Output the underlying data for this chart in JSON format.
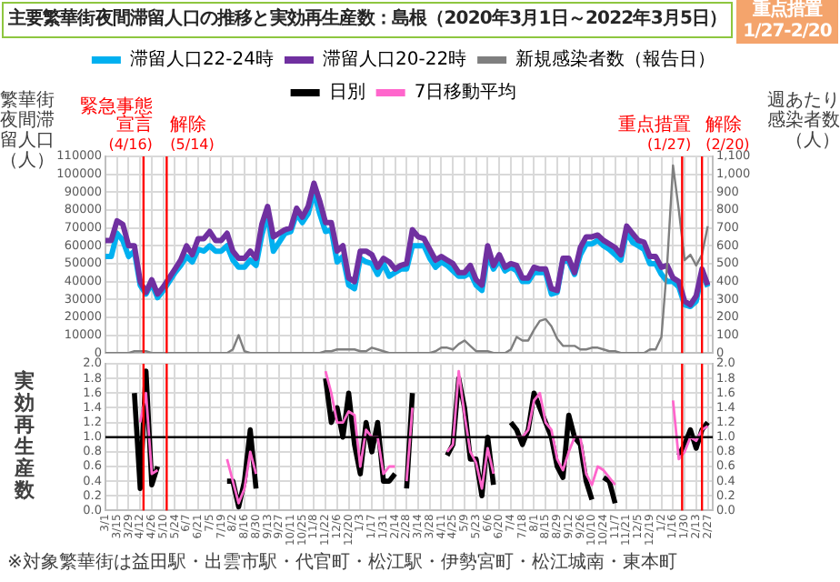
{
  "chart_data": [
    {
      "type": "line",
      "title": "主要繁華街夜間滞留人口の推移と実効再生産数：島根（2020年3月1日～2022年3月5日）",
      "annotations": [
        "重点措置 1/27-2/20"
      ],
      "ylabel": "繁華街夜間滞留人口（人）",
      "y2label": "週あたり感染者数（人）",
      "x": [
        "2020-03-01",
        "2020-03-08",
        "2020-03-15",
        "2020-03-22",
        "2020-03-29",
        "2020-04-05",
        "2020-04-12",
        "2020-04-19",
        "2020-04-26",
        "2020-05-03",
        "2020-05-10",
        "2020-05-17",
        "2020-05-24",
        "2020-05-31",
        "2020-06-07",
        "2020-06-14",
        "2020-06-21",
        "2020-06-28",
        "2020-07-05",
        "2020-07-12",
        "2020-07-19",
        "2020-07-26",
        "2020-08-02",
        "2020-08-09",
        "2020-08-16",
        "2020-08-23",
        "2020-08-30",
        "2020-09-06",
        "2020-09-13",
        "2020-09-20",
        "2020-09-27",
        "2020-10-04",
        "2020-10-11",
        "2020-10-18",
        "2020-10-25",
        "2020-11-01",
        "2020-11-08",
        "2020-11-15",
        "2020-11-22",
        "2020-11-29",
        "2020-12-06",
        "2020-12-13",
        "2020-12-20",
        "2020-12-27",
        "2021-01-03",
        "2021-01-10",
        "2021-01-17",
        "2021-01-24",
        "2021-01-31",
        "2021-02-07",
        "2021-02-14",
        "2021-02-21",
        "2021-02-28",
        "2021-03-07",
        "2021-03-14",
        "2021-03-21",
        "2021-03-28",
        "2021-04-04",
        "2021-04-11",
        "2021-04-18",
        "2021-04-25",
        "2021-05-02",
        "2021-05-09",
        "2021-05-16",
        "2021-05-23",
        "2021-05-30",
        "2021-06-06",
        "2021-06-13",
        "2021-06-20",
        "2021-06-27",
        "2021-07-04",
        "2021-07-11",
        "2021-07-18",
        "2021-07-25",
        "2021-08-01",
        "2021-08-08",
        "2021-08-15",
        "2021-08-22",
        "2021-08-29",
        "2021-09-05",
        "2021-09-12",
        "2021-09-19",
        "2021-09-26",
        "2021-10-03",
        "2021-10-10",
        "2021-10-17",
        "2021-10-24",
        "2021-10-31",
        "2021-11-07",
        "2021-11-14",
        "2021-11-21",
        "2021-11-28",
        "2021-12-05",
        "2021-12-12",
        "2021-12-19",
        "2021-12-26",
        "2022-01-02",
        "2022-01-09",
        "2022-01-16",
        "2022-01-23",
        "2022-01-30",
        "2022-02-06",
        "2022-02-13",
        "2022-02-20",
        "2022-02-27"
      ],
      "series": [
        {
          "name": "滞留人口22-24時",
          "color": "#00b0f0",
          "values": [
            54000,
            54000,
            67000,
            63000,
            54000,
            57000,
            38000,
            33000,
            39000,
            31000,
            35000,
            40000,
            45000,
            49000,
            54000,
            51000,
            58000,
            57000,
            60000,
            57000,
            57000,
            60000,
            52000,
            48000,
            48000,
            52000,
            49000,
            66000,
            78000,
            57000,
            62000,
            67000,
            68000,
            78000,
            73000,
            78000,
            90000,
            78000,
            68000,
            69000,
            51000,
            54000,
            38000,
            36000,
            53000,
            51000,
            50000,
            44000,
            50000,
            43000,
            45000,
            47000,
            47000,
            60000,
            60000,
            60000,
            53000,
            48000,
            51000,
            49000,
            46000,
            43000,
            43000,
            45000,
            38000,
            35000,
            55000,
            47000,
            52000,
            46000,
            48000,
            46000,
            40000,
            40000,
            45000,
            45000,
            45000,
            33000,
            34000,
            52000,
            51000,
            44000,
            55000,
            61000,
            61000,
            63000,
            60000,
            58000,
            55000,
            52000,
            68000,
            62000,
            60000,
            58000,
            50000,
            50000,
            44000,
            40000,
            40000,
            37000,
            27000,
            26000,
            29000,
            45000,
            37000
          ]
        },
        {
          "name": "滞留人口20-22時",
          "color": "#7030a0",
          "values": [
            63000,
            63000,
            74000,
            72000,
            60000,
            60000,
            40000,
            34000,
            41000,
            33000,
            37000,
            42000,
            47000,
            52000,
            60000,
            55000,
            64000,
            64000,
            68000,
            63000,
            63000,
            67000,
            57000,
            53000,
            53000,
            57000,
            53000,
            72000,
            82000,
            65000,
            67000,
            69000,
            70000,
            81000,
            76000,
            82000,
            95000,
            85000,
            73000,
            73000,
            57000,
            60000,
            42000,
            40000,
            57000,
            57000,
            55000,
            48000,
            53000,
            51000,
            47000,
            49000,
            50000,
            69000,
            65000,
            64000,
            58000,
            52000,
            54000,
            52000,
            50000,
            45000,
            45000,
            49000,
            41000,
            38000,
            60000,
            49000,
            55000,
            48000,
            50000,
            49000,
            42000,
            42000,
            48000,
            47000,
            47000,
            36000,
            35000,
            53000,
            53000,
            45000,
            59000,
            65000,
            65000,
            66000,
            63000,
            61000,
            59000,
            55000,
            71000,
            67000,
            63000,
            62000,
            54000,
            54000,
            48000,
            49000,
            42000,
            40000,
            29000,
            27000,
            32000,
            47000,
            38000
          ]
        },
        {
          "name": "新規感染者数（報告日）",
          "color": "#7f7f7f",
          "axis": "y2",
          "values": [
            0,
            0,
            0,
            0,
            0,
            10,
            10,
            10,
            0,
            0,
            0,
            0,
            0,
            0,
            0,
            0,
            0,
            0,
            0,
            0,
            0,
            0,
            20,
            100,
            10,
            0,
            0,
            0,
            0,
            0,
            0,
            0,
            0,
            0,
            0,
            0,
            0,
            0,
            10,
            10,
            20,
            20,
            20,
            20,
            10,
            10,
            30,
            20,
            10,
            0,
            0,
            0,
            0,
            0,
            0,
            0,
            0,
            10,
            30,
            30,
            20,
            50,
            70,
            40,
            10,
            10,
            10,
            0,
            0,
            0,
            20,
            90,
            70,
            70,
            130,
            180,
            190,
            150,
            80,
            40,
            40,
            40,
            20,
            20,
            30,
            30,
            20,
            10,
            10,
            0,
            0,
            0,
            0,
            0,
            20,
            20,
            90,
            500,
            1050,
            800,
            520,
            550,
            490,
            550,
            710
          ]
        }
      ],
      "xlim": [
        "2020-03-01",
        "2022-03-05"
      ],
      "xticks": [
        {
          "value": "2020-03-01",
          "label": null
        },
        {
          "value": "2020-03-15",
          "label": null
        },
        {
          "value": "2020-03-29",
          "label": null
        },
        {
          "value": "2020-04-12",
          "label": null
        },
        {
          "value": "2020-04-26",
          "label": null
        },
        {
          "value": "2020-05-10",
          "label": null
        },
        {
          "value": "2020-05-24",
          "label": null
        },
        {
          "value": "2020-06-07",
          "label": null
        },
        {
          "value": "2020-06-21",
          "label": null
        },
        {
          "value": "2020-07-05",
          "label": null
        },
        {
          "value": "2020-07-19",
          "label": null
        },
        {
          "value": "2020-08-02",
          "label": null
        },
        {
          "value": "2020-08-16",
          "label": null
        },
        {
          "value": "2020-08-30",
          "label": null
        },
        {
          "value": "2020-09-13",
          "label": null
        },
        {
          "value": "2020-09-27",
          "label": null
        },
        {
          "value": "2020-10-11",
          "label": null
        },
        {
          "value": "2020-10-25",
          "label": null
        },
        {
          "value": "2020-11-08",
          "label": null
        },
        {
          "value": "2020-11-22",
          "label": null
        },
        {
          "value": "2020-12-06",
          "label": null
        },
        {
          "value": "2020-12-20",
          "label": null
        },
        {
          "value": "2021-01-03",
          "label": null
        },
        {
          "value": "2021-01-17",
          "label": null
        },
        {
          "value": "2021-01-31",
          "label": null
        },
        {
          "value": "2021-02-14",
          "label": null
        },
        {
          "value": "2021-02-28",
          "label": null
        },
        {
          "value": "2021-03-14",
          "label": null
        },
        {
          "value": "2021-03-28",
          "label": null
        },
        {
          "value": "2021-04-11",
          "label": null
        },
        {
          "value": "2021-04-25",
          "label": null
        },
        {
          "value": "2021-05-09",
          "label": null
        },
        {
          "value": "2021-05-23",
          "label": null
        },
        {
          "value": "2021-06-06",
          "label": null
        },
        {
          "value": "2021-06-20",
          "label": null
        },
        {
          "value": "2021-07-04",
          "label": null
        },
        {
          "value": "2021-07-18",
          "label": null
        },
        {
          "value": "2021-08-01",
          "label": null
        },
        {
          "value": "2021-08-15",
          "label": null
        },
        {
          "value": "2021-08-29",
          "label": null
        },
        {
          "value": "2021-09-12",
          "label": null
        },
        {
          "value": "2021-09-26",
          "label": null
        },
        {
          "value": "2021-10-10",
          "label": null
        },
        {
          "value": "2021-10-24",
          "label": null
        },
        {
          "value": "2021-11-07",
          "label": null
        },
        {
          "value": "2021-11-21",
          "label": null
        },
        {
          "value": "2021-12-05",
          "label": null
        },
        {
          "value": "2021-12-19",
          "label": null
        },
        {
          "value": "2022-01-02",
          "label": null
        },
        {
          "value": "2022-01-16",
          "label": null
        },
        {
          "value": "2022-01-30",
          "label": null
        },
        {
          "value": "2022-02-13",
          "label": null
        },
        {
          "value": "2022-02-27",
          "label": null
        }
      ],
      "ylim": [
        0,
        110000
      ],
      "yticks": [
        0,
        10000,
        20000,
        30000,
        40000,
        50000,
        60000,
        70000,
        80000,
        90000,
        100000,
        110000
      ],
      "y2lim": [
        0,
        1100
      ],
      "y2ticks": [
        0,
        100,
        200,
        300,
        400,
        500,
        600,
        700,
        800,
        900,
        {
          "value": 1000,
          "label": "1,000"
        },
        {
          "value": 1100,
          "label": "1,100"
        }
      ],
      "ref_lines": [
        {
          "axis": "x",
          "value": "2020-04-16",
          "label": "緊急事態宣言(4/16)",
          "color": "#ff0000"
        },
        {
          "axis": "x",
          "value": "2020-05-14",
          "label": "解除(5/14)",
          "color": "#ff0000"
        },
        {
          "axis": "x",
          "value": "2022-01-27",
          "label": "重点措置(1/27)",
          "color": "#ff0000"
        },
        {
          "axis": "x",
          "value": "2022-02-20",
          "label": "解除(2/20)",
          "color": "#ff0000"
        }
      ],
      "grid": true,
      "legend": "top",
      "tick_labels": "y"
    },
    {
      "type": "line",
      "ylabel": "実効再生産数",
      "annotations": [
        "※対象繁華街は益田駅・出雲市駅・代官町・松江駅・伊勢宮町・松江城南・東本町"
      ],
      "x": [
        "2020-04-05",
        "2020-04-12",
        "2020-04-19",
        "2020-04-26",
        "2020-05-03",
        "2020-05-10",
        "2020-05-17",
        "2020-05-24",
        "2020-05-31",
        "2020-06-07",
        "2020-06-14",
        "2020-06-21",
        "2020-06-28",
        "2020-07-05",
        "2020-07-12",
        "2020-07-19",
        "2020-07-26",
        "2020-08-02",
        "2020-08-09",
        "2020-08-16",
        "2020-08-23",
        "2020-08-30",
        "2020-09-06",
        "2020-09-13",
        "2020-09-20",
        "2020-09-27",
        "2020-10-04",
        "2020-10-11",
        "2020-10-18",
        "2020-10-25",
        "2020-11-01",
        "2020-11-08",
        "2020-11-15",
        "2020-11-22",
        "2020-11-29",
        "2020-12-06",
        "2020-12-13",
        "2020-12-20",
        "2020-12-27",
        "2021-01-03",
        "2021-01-10",
        "2021-01-17",
        "2021-01-24",
        "2021-01-31",
        "2021-02-07",
        "2021-02-14",
        "2021-02-21",
        "2021-02-28",
        "2021-03-07",
        "2021-03-14",
        "2021-03-21",
        "2021-03-28",
        "2021-04-04",
        "2021-04-11",
        "2021-04-18",
        "2021-04-25",
        "2021-05-02",
        "2021-05-09",
        "2021-05-16",
        "2021-05-23",
        "2021-05-30",
        "2021-06-06",
        "2021-06-13",
        "2021-06-20",
        "2021-06-27",
        "2021-07-04",
        "2021-07-11",
        "2021-07-18",
        "2021-07-25",
        "2021-08-01",
        "2021-08-08",
        "2021-08-15",
        "2021-08-22",
        "2021-08-29",
        "2021-09-05",
        "2021-09-12",
        "2021-09-19",
        "2021-09-26",
        "2021-10-03",
        "2021-10-10",
        "2021-10-17",
        "2021-10-24",
        "2021-10-31",
        "2021-11-07",
        "2021-11-14",
        "2021-11-21",
        "2021-11-28",
        "2021-12-05",
        "2021-12-12",
        "2021-12-19",
        "2021-12-26",
        "2022-01-02",
        "2022-01-09",
        "2022-01-16",
        "2022-01-23",
        "2022-01-30",
        "2022-02-06",
        "2022-02-13",
        "2022-02-20",
        "2022-02-27"
      ],
      "series": [
        {
          "name": "日別",
          "color": "#000000",
          "values": [
            1.6,
            0.3,
            1.9,
            0.35,
            0.6,
            null,
            null,
            null,
            null,
            null,
            null,
            null,
            null,
            null,
            null,
            null,
            0.4,
            0.4,
            0.05,
            0.4,
            1.1,
            0.3,
            null,
            null,
            null,
            null,
            null,
            null,
            null,
            null,
            null,
            null,
            null,
            1.8,
            1.2,
            1.4,
            1.0,
            1.6,
            0.9,
            0.5,
            1.2,
            0.8,
            1.2,
            0.4,
            0.4,
            0.5,
            null,
            0.3,
            1.6,
            null,
            null,
            null,
            null,
            null,
            0.75,
            0.9,
            1.8,
            1.4,
            0.7,
            0.7,
            0.2,
            1.0,
            0.35,
            null,
            null,
            1.2,
            1.1,
            0.9,
            1.1,
            1.6,
            1.4,
            1.2,
            1.0,
            0.6,
            0.45,
            1.3,
            1.0,
            0.9,
            0.4,
            0.15,
            null,
            0.45,
            0.4,
            0.1,
            null,
            null,
            null,
            null,
            null,
            null,
            null,
            null,
            null,
            null,
            0.75,
            0.9,
            1.1,
            0.85,
            1.1,
            1.2
          ]
        },
        {
          "name": "7日移動平均",
          "color": "#ff66cc",
          "values": [
            null,
            1.2,
            1.6,
            0.5,
            0.55,
            null,
            null,
            null,
            null,
            null,
            null,
            null,
            null,
            null,
            null,
            null,
            0.7,
            0.4,
            0.1,
            0.3,
            0.8,
            0.5,
            null,
            null,
            null,
            null,
            null,
            null,
            null,
            null,
            null,
            null,
            null,
            1.9,
            1.6,
            1.2,
            1.2,
            1.35,
            1.3,
            0.6,
            1.1,
            1.0,
            1.0,
            0.5,
            0.6,
            0.6,
            null,
            0.4,
            1.4,
            null,
            null,
            null,
            null,
            null,
            0.8,
            0.9,
            1.9,
            1.3,
            0.8,
            0.65,
            0.3,
            0.85,
            0.5,
            null,
            null,
            null,
            1.0,
            1.0,
            1.1,
            1.5,
            1.6,
            1.2,
            1.1,
            0.7,
            0.55,
            0.8,
            1.0,
            1.0,
            0.5,
            0.35,
            0.6,
            0.55,
            0.45,
            0.35,
            null,
            null,
            null,
            null,
            null,
            null,
            null,
            null,
            null,
            1.5,
            0.7,
            0.8,
            1.0,
            0.95,
            1.1,
            1.15
          ]
        }
      ],
      "xlim": [
        "2020-03-01",
        "2022-03-05"
      ],
      "xticks": [
        {
          "value": "2020-03-01",
          "label": "3/1"
        },
        {
          "value": "2020-03-15",
          "label": "3/15"
        },
        {
          "value": "2020-03-29",
          "label": "3/29"
        },
        {
          "value": "2020-04-12",
          "label": "4/12"
        },
        {
          "value": "2020-04-26",
          "label": "4/26"
        },
        {
          "value": "2020-05-10",
          "label": "5/10"
        },
        {
          "value": "2020-05-24",
          "label": "5/24"
        },
        {
          "value": "2020-06-07",
          "label": "6/7"
        },
        {
          "value": "2020-06-21",
          "label": "6/21"
        },
        {
          "value": "2020-07-05",
          "label": "7/5"
        },
        {
          "value": "2020-07-19",
          "label": "7/19"
        },
        {
          "value": "2020-08-02",
          "label": "8/2"
        },
        {
          "value": "2020-08-16",
          "label": "8/16"
        },
        {
          "value": "2020-08-30",
          "label": "8/30"
        },
        {
          "value": "2020-09-13",
          "label": "9/13"
        },
        {
          "value": "2020-09-27",
          "label": "9/27"
        },
        {
          "value": "2020-10-11",
          "label": "10/11"
        },
        {
          "value": "2020-10-25",
          "label": "10/25"
        },
        {
          "value": "2020-11-08",
          "label": "11/8"
        },
        {
          "value": "2020-11-22",
          "label": "11/22"
        },
        {
          "value": "2020-12-06",
          "label": "12/6"
        },
        {
          "value": "2020-12-20",
          "label": "12/20"
        },
        {
          "value": "2021-01-03",
          "label": "1/3"
        },
        {
          "value": "2021-01-17",
          "label": "1/17"
        },
        {
          "value": "2021-01-31",
          "label": "1/31"
        },
        {
          "value": "2021-02-14",
          "label": "2/14"
        },
        {
          "value": "2021-02-28",
          "label": "2/28"
        },
        {
          "value": "2021-03-14",
          "label": "3/14"
        },
        {
          "value": "2021-03-28",
          "label": "3/28"
        },
        {
          "value": "2021-04-11",
          "label": "4/11"
        },
        {
          "value": "2021-04-25",
          "label": "4/25"
        },
        {
          "value": "2021-05-09",
          "label": "5/9"
        },
        {
          "value": "2021-05-23",
          "label": "5/23"
        },
        {
          "value": "2021-06-06",
          "label": "6/6"
        },
        {
          "value": "2021-06-20",
          "label": "6/20"
        },
        {
          "value": "2021-07-04",
          "label": "7/4"
        },
        {
          "value": "2021-07-18",
          "label": "7/18"
        },
        {
          "value": "2021-08-01",
          "label": "8/1"
        },
        {
          "value": "2021-08-15",
          "label": "8/15"
        },
        {
          "value": "2021-08-29",
          "label": "8/29"
        },
        {
          "value": "2021-09-12",
          "label": "9/12"
        },
        {
          "value": "2021-09-26",
          "label": "9/26"
        },
        {
          "value": "2021-10-10",
          "label": "10/10"
        },
        {
          "value": "2021-10-24",
          "label": "10/24"
        },
        {
          "value": "2021-11-07",
          "label": "11/7"
        },
        {
          "value": "2021-11-21",
          "label": "11/21"
        },
        {
          "value": "2021-12-05",
          "label": "12/5"
        },
        {
          "value": "2021-12-19",
          "label": "12/19"
        },
        {
          "value": "2022-01-02",
          "label": "1/2"
        },
        {
          "value": "2022-01-16",
          "label": "1/16"
        },
        {
          "value": "2022-01-30",
          "label": "1/30"
        },
        {
          "value": "2022-02-13",
          "label": "2/13"
        },
        {
          "value": "2022-02-27",
          "label": "2/27"
        }
      ],
      "ylim": [
        0,
        2
      ],
      "yticks": [
        {
          "value": 0,
          "label": "0.0"
        },
        0.2,
        0.4,
        0.6,
        0.8,
        {
          "value": 1,
          "label": "1.0"
        },
        1.2,
        1.4,
        1.6,
        1.8,
        {
          "value": 2,
          "label": "2.0"
        }
      ],
      "y2lim": [
        0,
        2
      ],
      "y2ticks": [
        {
          "value": 0,
          "label": "0.0"
        },
        0.2,
        0.4,
        0.6,
        0.8,
        {
          "value": 1,
          "label": "1.0"
        },
        1.2,
        1.4,
        1.6,
        1.8,
        {
          "value": 2,
          "label": "2.0"
        }
      ],
      "ref_lines": [
        {
          "axis": "y",
          "value": 1,
          "label": null,
          "color": "#000000"
        },
        {
          "axis": "x",
          "value": "2020-04-16",
          "label": null,
          "color": "#ff0000"
        },
        {
          "axis": "x",
          "value": "2020-05-14",
          "label": null,
          "color": "#ff0000"
        },
        {
          "axis": "x",
          "value": "2022-01-27",
          "label": null,
          "color": "#ff0000"
        },
        {
          "axis": "x",
          "value": "2022-02-20",
          "label": null,
          "color": "#ff0000"
        }
      ],
      "grid": true,
      "legend": "top"
    }
  ]
}
